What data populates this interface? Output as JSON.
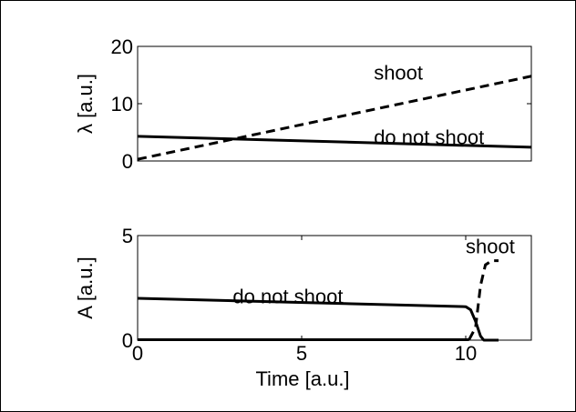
{
  "chart_data": [
    {
      "type": "line",
      "ylabel": "λ [a.u.]",
      "xlabel": "",
      "xlim": [
        0,
        11
      ],
      "ylim": [
        0,
        20
      ],
      "yticks": [
        0,
        10,
        20
      ],
      "xticks": [],
      "series": [
        {
          "name": "do not shoot",
          "style": "solid",
          "color": "#000000",
          "x": [
            0,
            11
          ],
          "y": [
            4.3,
            2.4
          ]
        },
        {
          "name": "shoot",
          "style": "dashed",
          "color": "#000000",
          "x": [
            0,
            11
          ],
          "y": [
            0.3,
            14.8
          ]
        }
      ],
      "annotations": [
        {
          "text": "shoot",
          "x": 6.6,
          "y": 15.5
        },
        {
          "text": "do not shoot",
          "x": 6.6,
          "y": 4.2
        }
      ]
    },
    {
      "type": "line",
      "ylabel": "A [a.u.]",
      "xlabel": "Time [a.u.]",
      "xlim": [
        0,
        12
      ],
      "ylim": [
        0,
        5
      ],
      "yticks": [
        0,
        5
      ],
      "xticks": [
        0,
        5,
        10
      ],
      "series": [
        {
          "name": "do not shoot",
          "style": "solid",
          "color": "#000000",
          "x": [
            0,
            10,
            10.15,
            10.3,
            10.45,
            10.55,
            11
          ],
          "y": [
            2.0,
            1.6,
            1.45,
            0.9,
            0.2,
            0.0,
            0.0
          ]
        },
        {
          "name": "shoot",
          "style": "solid-baseline",
          "color": "#000000",
          "x": [
            0,
            10.1
          ],
          "y": [
            0.02,
            0.02
          ]
        },
        {
          "name": "shoot",
          "style": "dashed",
          "color": "#000000",
          "x": [
            10.1,
            10.3,
            10.45,
            10.6,
            10.8,
            11
          ],
          "y": [
            0.02,
            0.6,
            2.6,
            3.6,
            3.8,
            3.8
          ]
        }
      ],
      "annotations": [
        {
          "text": "shoot",
          "x": 10.0,
          "y": 4.5
        },
        {
          "text": "do not shoot",
          "x": 2.9,
          "y": 2.1
        }
      ]
    }
  ]
}
